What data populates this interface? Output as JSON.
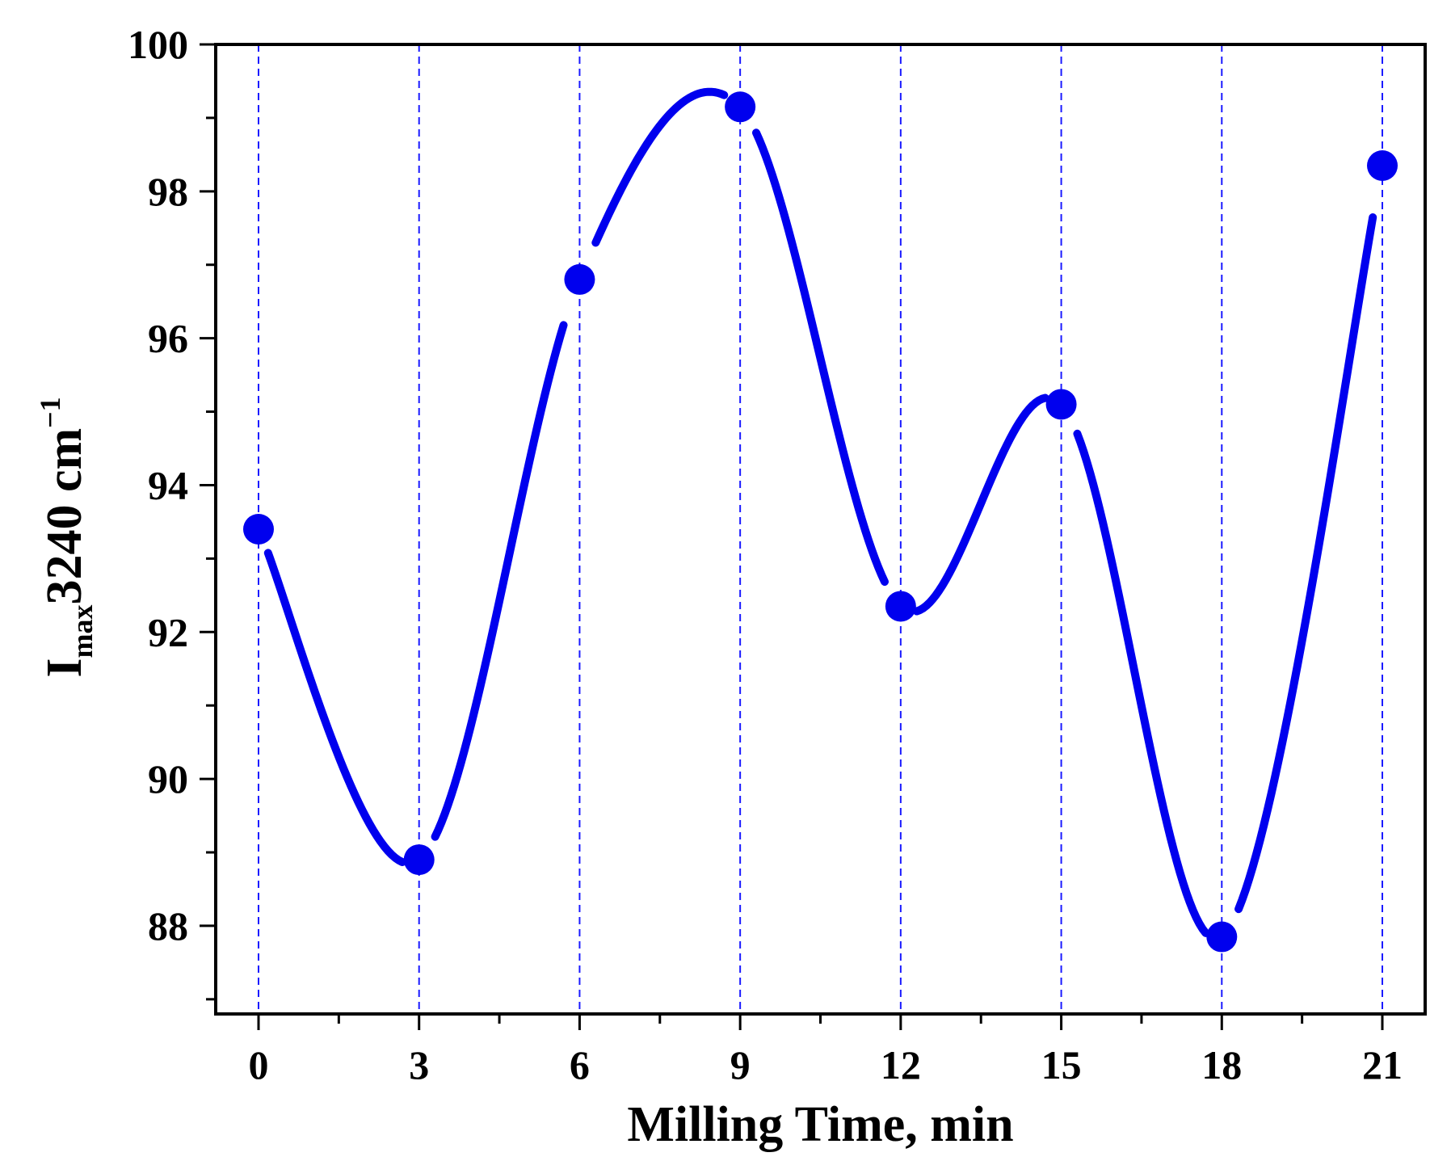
{
  "chart_data": {
    "type": "line",
    "xlabel": "Milling Time, min",
    "ylabel": {
      "main": "I",
      "subscript": "max",
      "rest": "3240 cm",
      "superscript": "−1"
    },
    "xlim": [
      -0.8,
      21.8
    ],
    "ylim": [
      86.8,
      100
    ],
    "xticks": [
      0,
      3,
      6,
      9,
      12,
      15,
      18,
      21
    ],
    "yticks": [
      88,
      90,
      92,
      94,
      96,
      98,
      100
    ],
    "grid": "vertical dashed at x ticks",
    "series": [
      {
        "x": [
          0,
          3,
          6,
          9,
          12,
          15,
          18,
          21
        ],
        "y": [
          93.4,
          88.9,
          96.8,
          99.15,
          92.35,
          95.1,
          87.85,
          98.35
        ],
        "style": "markers with smooth spline, gaps near markers"
      }
    ],
    "colors": {
      "series": "#0000ee",
      "grid": "#1a1aff",
      "axis": "#000000"
    }
  }
}
